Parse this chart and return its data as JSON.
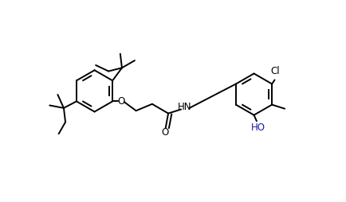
{
  "bg_color": "#ffffff",
  "lc": "#000000",
  "lw": 1.4,
  "fig_w": 4.35,
  "fig_h": 2.54,
  "dpi": 100,
  "xlim": [
    0,
    10
  ],
  "ylim": [
    0,
    6
  ],
  "fs_label": 8.5,
  "ho_color": "#1a1aaa"
}
